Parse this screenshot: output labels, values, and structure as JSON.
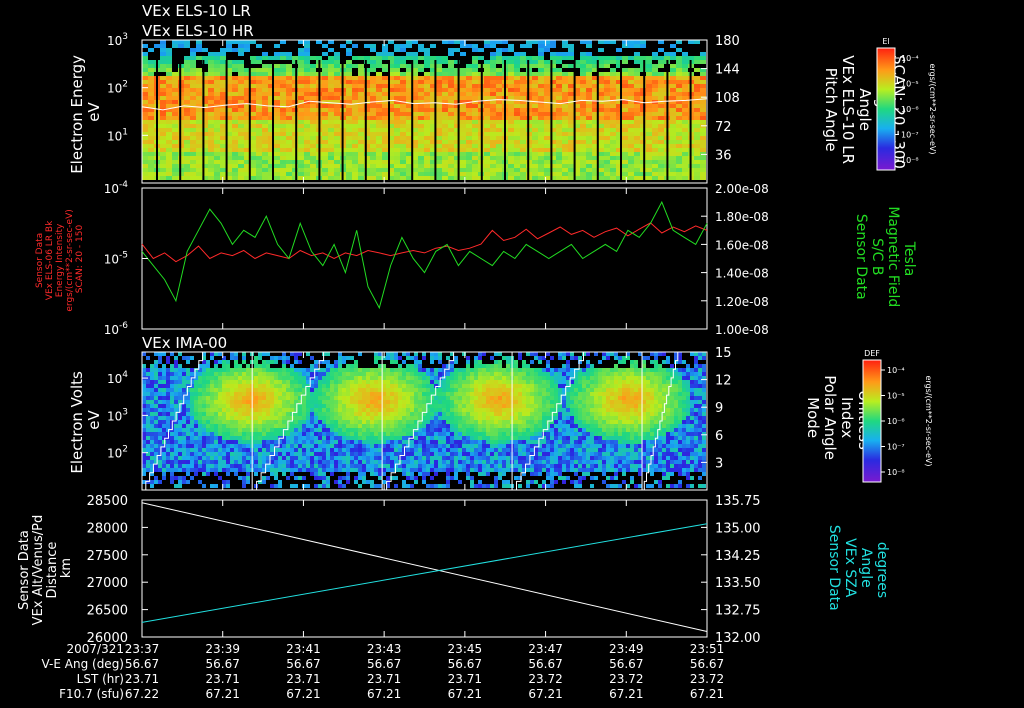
{
  "colors": {
    "background": "#000000",
    "text": "#ffffff",
    "red_series": "#ff2a2a",
    "green_series": "#22dd22",
    "cyan_series": "#22e0e0",
    "white_series": "#ffffff"
  },
  "chart_data": [
    {
      "type": "heatmap",
      "panel": "els",
      "titles": [
        "VEx ELS-10 LR",
        "VEx ELS-10 HR"
      ],
      "ylabel": [
        "Electron Energy",
        "eV"
      ],
      "yscale": "log",
      "ylim": [
        1,
        1000
      ],
      "yticks": [
        {
          "value": 1000,
          "base": "10",
          "exp": "3"
        },
        {
          "value": 100,
          "base": "10",
          "exp": "2"
        },
        {
          "value": 10,
          "base": "10",
          "exp": "1"
        }
      ],
      "y2label": [
        "Pitch Angle",
        "VEx ELS-10 LR",
        "Angle",
        "degrees",
        "SCAN: 20 - 300"
      ],
      "y2lim": [
        0,
        180
      ],
      "y2ticks": [
        "180",
        "144",
        "108",
        "72",
        "36"
      ],
      "y2tick_values": [
        180,
        144,
        108,
        72,
        36
      ],
      "overlay_pitch_angle_deg": [
        96,
        92,
        97,
        95,
        98,
        100,
        97,
        96,
        103,
        101,
        99,
        102,
        104,
        100,
        101,
        99,
        103,
        105,
        104,
        102,
        100,
        104,
        103,
        105,
        101,
        103,
        104,
        106
      ],
      "colorbar": {
        "label": "El",
        "units": "ergs/(cm**2-sr-sec-eV)",
        "ticks": [
          "10⁻⁴",
          "10⁻⁵",
          "10⁻⁶",
          "10⁻⁷",
          "10⁻⁸"
        ]
      }
    },
    {
      "type": "line",
      "panel": "flux_and_field",
      "yscale": "log",
      "ylim": [
        1e-06,
        0.0001
      ],
      "yticks": [
        {
          "value": 0.0001,
          "base": "10",
          "exp": "-4"
        },
        {
          "value": 1e-05,
          "base": "10",
          "exp": "-5"
        },
        {
          "value": 1e-06,
          "base": "10",
          "exp": "-6"
        }
      ],
      "ylabel_red": [
        "Sensor Data",
        "VEx ELS-06 LR Bk",
        "Energy Intensity",
        "ergs/(cm**2-sr-sec-eV)",
        "SCAN: 20 - 150"
      ],
      "y2label": [
        "Sensor Data",
        "S/C B",
        "Magnetic Field",
        "Tesla"
      ],
      "y2lim": [
        1e-08,
        2e-08
      ],
      "y2ticks": [
        "2.00e-08",
        "1.80e-08",
        "1.60e-08",
        "1.40e-08",
        "1.20e-08",
        "1.00e-08"
      ],
      "y2tick_values": [
        2e-08,
        1.8e-08,
        1.6e-08,
        1.4e-08,
        1.2e-08,
        1e-08
      ],
      "series": [
        {
          "color": "#ff2a2a",
          "axis": "left",
          "values": [
            1.6e-05,
            1e-05,
            1.2e-05,
            9e-06,
            1.1e-05,
            1.5e-05,
            1e-05,
            1.2e-05,
            1.1e-05,
            1.3e-05,
            1e-05,
            1.2e-05,
            1.1e-05,
            1e-05,
            1.3e-05,
            1.1e-05,
            1.2e-05,
            1e-05,
            1.2e-05,
            1.1e-05,
            1.3e-05,
            1.2e-05,
            1.1e-05,
            1.2e-05,
            1.3e-05,
            1.2e-05,
            1.4e-05,
            1.5e-05,
            1.3e-05,
            1.4e-05,
            1.6e-05,
            2.5e-05,
            1.8e-05,
            2e-05,
            2.6e-05,
            1.9e-05,
            2.3e-05,
            2.8e-05,
            2.2e-05,
            2.5e-05,
            2e-05,
            2.4e-05,
            2.7e-05,
            2.1e-05,
            2.6e-05,
            3.2e-05,
            2.3e-05,
            2.8e-05,
            2.4e-05,
            2.9e-05,
            2.5e-05
          ]
        },
        {
          "color": "#22dd22",
          "axis": "right",
          "values": [
            1.55e-08,
            1.45e-08,
            1.35e-08,
            1.2e-08,
            1.55e-08,
            1.7e-08,
            1.85e-08,
            1.75e-08,
            1.6e-08,
            1.7e-08,
            1.65e-08,
            1.8e-08,
            1.6e-08,
            1.5e-08,
            1.75e-08,
            1.55e-08,
            1.45e-08,
            1.6e-08,
            1.4e-08,
            1.7e-08,
            1.3e-08,
            1.15e-08,
            1.45e-08,
            1.65e-08,
            1.5e-08,
            1.4e-08,
            1.55e-08,
            1.6e-08,
            1.45e-08,
            1.55e-08,
            1.5e-08,
            1.45e-08,
            1.55e-08,
            1.5e-08,
            1.6e-08,
            1.55e-08,
            1.5e-08,
            1.55e-08,
            1.6e-08,
            1.5e-08,
            1.55e-08,
            1.6e-08,
            1.55e-08,
            1.7e-08,
            1.65e-08,
            1.75e-08,
            1.9e-08,
            1.7e-08,
            1.65e-08,
            1.6e-08,
            1.75e-08
          ]
        }
      ]
    },
    {
      "type": "heatmap",
      "panel": "ima",
      "title": "VEx IMA-00",
      "ylabel": [
        "Electron Volts",
        "eV"
      ],
      "yscale": "log",
      "ylim": [
        10,
        50000
      ],
      "yticks": [
        {
          "value": 10000,
          "base": "10",
          "exp": "4"
        },
        {
          "value": 1000,
          "base": "10",
          "exp": "3"
        },
        {
          "value": 100,
          "base": "10",
          "exp": "2"
        }
      ],
      "y2label": [
        "Mode",
        "Polar Angle",
        "Index",
        "Unitless"
      ],
      "y2lim": [
        0,
        15
      ],
      "y2ticks": [
        "15",
        "12",
        "9",
        "6",
        "3"
      ],
      "y2tick_values": [
        15,
        12,
        9,
        6,
        3
      ],
      "scan_boundaries_fraction": [
        0.195,
        0.425,
        0.655,
        0.885
      ],
      "colorbar": {
        "label": "DEF",
        "units": "ergs/(cm**2-sr-sec-eV)",
        "ticks": [
          "10⁻⁴",
          "10⁻⁵",
          "10⁻⁶",
          "10⁻⁷",
          "10⁻⁸"
        ]
      }
    },
    {
      "type": "line",
      "panel": "altitude_sza",
      "ylabel": [
        "Sensor Data",
        "VEx Alt/Venus/Pd",
        "Distance",
        "km"
      ],
      "ylim": [
        26000,
        28500
      ],
      "yticks": [
        "28500",
        "28000",
        "27500",
        "27000",
        "26500",
        "26000"
      ],
      "ytick_values": [
        28500,
        28000,
        27500,
        27000,
        26500,
        26000
      ],
      "y2label": [
        "Sensor Data",
        "VEx SZA",
        "Angle",
        "degrees"
      ],
      "y2lim": [
        132.0,
        135.75
      ],
      "y2ticks": [
        "135.75",
        "135.00",
        "134.25",
        "133.50",
        "132.75",
        "132.00"
      ],
      "y2tick_values": [
        135.75,
        135.0,
        134.25,
        133.5,
        132.75,
        132.0
      ],
      "series": [
        {
          "color": "#ffffff",
          "axis": "left",
          "x": [
            "23:37",
            "23:51"
          ],
          "values": [
            28450,
            26100
          ]
        },
        {
          "color": "#22e0e0",
          "axis": "right",
          "x": [
            "23:37",
            "23:51"
          ],
          "values": [
            132.4,
            135.1
          ]
        }
      ]
    }
  ],
  "time_axis": {
    "ticks": [
      "23:37",
      "23:39",
      "23:41",
      "23:43",
      "23:45",
      "23:47",
      "23:49",
      "23:51"
    ],
    "rows": [
      {
        "label": "2007/321",
        "values": [
          "23:37",
          "23:39",
          "23:41",
          "23:43",
          "23:45",
          "23:47",
          "23:49",
          "23:51"
        ]
      },
      {
        "label": "V-E Ang (deg)",
        "values": [
          "56.67",
          "56.67",
          "56.67",
          "56.67",
          "56.67",
          "56.67",
          "56.67",
          "56.67"
        ]
      },
      {
        "label": "LST (hr)",
        "values": [
          "23.71",
          "23.71",
          "23.71",
          "23.71",
          "23.71",
          "23.72",
          "23.72",
          "23.72"
        ]
      },
      {
        "label": "F10.7 (sfu)",
        "values": [
          "67.22",
          "67.21",
          "67.21",
          "67.21",
          "67.21",
          "67.21",
          "67.21",
          "67.21"
        ]
      }
    ]
  }
}
